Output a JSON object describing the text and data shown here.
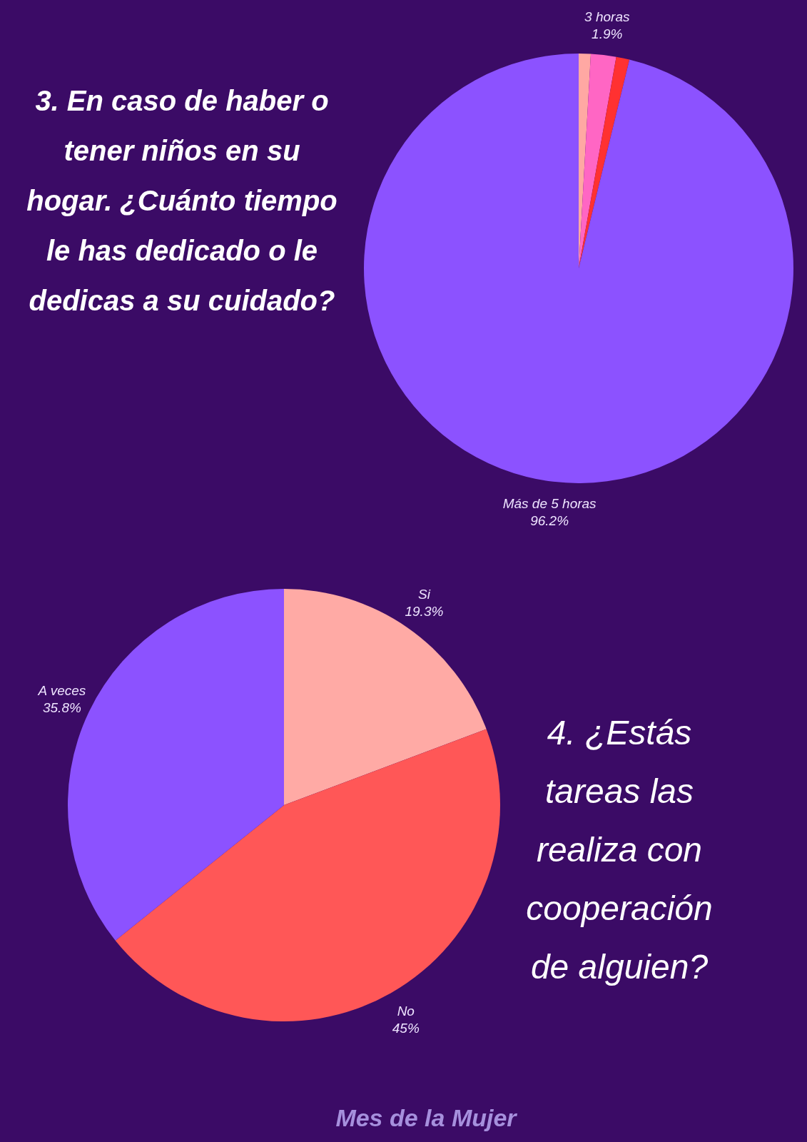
{
  "chart_data": [
    {
      "type": "pie",
      "title": "3. En caso de haber o tener niños en su hogar. ¿Cuánto tiempo le has dedicado o le dedicas a su cuidado?",
      "categories": [
        null,
        "3 horas",
        null,
        "Más de 5 horas"
      ],
      "values": [
        0.9,
        1.9,
        1.0,
        96.2
      ],
      "value_labels": [
        null,
        "1.9%",
        null,
        "96.2%"
      ],
      "colors": [
        "#ffa8a3",
        "#ff66c4",
        "#ff3131",
        "#8c52ff"
      ]
    },
    {
      "type": "pie",
      "title": "4. ¿Estás tareas las realiza con cooperación de alguien?",
      "categories": [
        "Si",
        "No",
        "A veces"
      ],
      "values": [
        19.3,
        45,
        35.8
      ],
      "value_labels": [
        "19.3%",
        "45%",
        "35.8%"
      ],
      "colors": [
        "#ffaaa5",
        "#ff5757",
        "#8c52ff"
      ],
      "annotations": [
        "Mes de la Mujer"
      ]
    }
  ]
}
